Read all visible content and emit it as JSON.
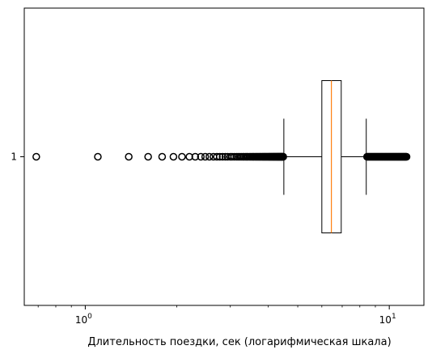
{
  "chart_data": {
    "type": "boxplot",
    "orientation": "horizontal",
    "title": "",
    "xlabel": "Длительность поездки, сек (логарифмическая шкала)",
    "ylabel": "",
    "xscale": "log",
    "xlim": [
      0.63,
      13.0
    ],
    "ylim": [
      0.5,
      1.5
    ],
    "grid": false,
    "x_ticks": [
      {
        "value": 1,
        "label": "10",
        "exp": "0"
      },
      {
        "value": 10,
        "label": "10",
        "exp": "1"
      }
    ],
    "y_ticks": [
      {
        "value": 1,
        "label": "1"
      }
    ],
    "box": {
      "position": 1,
      "whisker_low": 4.5,
      "q1": 6.0,
      "median": 6.45,
      "q3": 6.95,
      "whisker_high": 8.4
    },
    "outliers_low": [
      0.69,
      1.1,
      1.39,
      1.61,
      1.79,
      1.95,
      2.08,
      2.2,
      2.3,
      2.4,
      2.48,
      2.56,
      2.64,
      2.71,
      2.77,
      2.83,
      2.89,
      2.94,
      3.0,
      3.04,
      3.09,
      3.14,
      3.18,
      3.22,
      3.26,
      3.3,
      3.33,
      3.37,
      3.4,
      3.43,
      3.47,
      3.5,
      3.53,
      3.56,
      3.58,
      3.61,
      3.64,
      3.66,
      3.69,
      3.71,
      3.74,
      3.76,
      3.78,
      3.81,
      3.83,
      3.85,
      3.87,
      3.89,
      3.91,
      3.93,
      3.95,
      3.97,
      3.99,
      4.01,
      4.03,
      4.04,
      4.06,
      4.08,
      4.09,
      4.11,
      4.13,
      4.14,
      4.16,
      4.17,
      4.19,
      4.2,
      4.22,
      4.23,
      4.25,
      4.26,
      4.28,
      4.29,
      4.3,
      4.32,
      4.33,
      4.34,
      4.36,
      4.37,
      4.38,
      4.39,
      4.41,
      4.42,
      4.43,
      4.44,
      4.45,
      4.47,
      4.48
    ],
    "outliers_high": [
      8.45,
      8.5,
      8.55,
      8.6,
      8.65,
      8.7,
      8.75,
      8.8,
      8.85,
      8.9,
      8.95,
      9.0,
      9.05,
      9.1,
      9.15,
      9.2,
      9.25,
      9.3,
      9.35,
      9.4,
      9.45,
      9.5,
      9.55,
      9.6,
      9.65,
      9.7,
      9.75,
      9.8,
      9.85,
      9.9,
      9.95,
      10.0,
      10.05,
      10.1,
      10.15,
      10.2,
      10.25,
      10.3,
      10.35,
      10.4,
      10.45,
      10.5,
      10.55,
      10.6,
      10.65,
      10.7,
      10.75,
      10.8,
      10.85,
      10.9,
      10.95,
      11.0,
      11.05,
      11.1,
      11.15,
      11.2,
      11.25,
      11.3,
      11.35,
      11.4
    ],
    "colors": {
      "median": "#ff7f0e",
      "box": "#000000",
      "flier": "#000000"
    }
  }
}
